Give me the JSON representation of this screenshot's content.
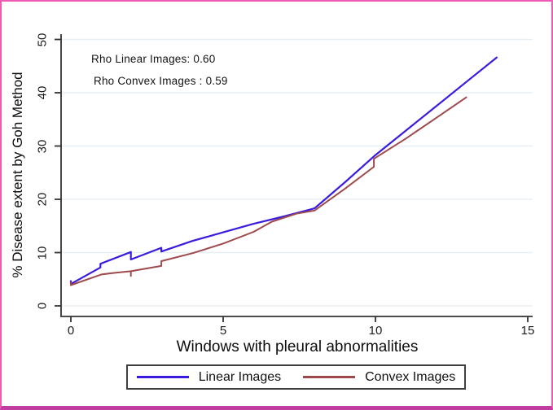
{
  "frame": {
    "border_color": "#f05ab2",
    "bottom_bar_color": "#c13da0",
    "background": "#ffffff"
  },
  "chart_data": {
    "type": "line",
    "title": "",
    "xlabel": "Windows with pleural abnormalities",
    "ylabel": "% Disease extent by Goh Method",
    "xlim": [
      0,
      15
    ],
    "ylim": [
      0,
      50
    ],
    "xticks": [
      0,
      5,
      10,
      15
    ],
    "yticks": [
      0,
      10,
      20,
      30,
      40,
      50
    ],
    "grid": "horizontal",
    "grid_color": "#e7eff4",
    "axis_color": "#333333",
    "legend_position": "bottom",
    "annotations": [
      {
        "text": "Rho Linear Images: 0.60"
      },
      {
        "text": "Rho Convex Images : 0.59"
      }
    ],
    "series": [
      {
        "name": "Linear Images",
        "color": "#3a1ce0",
        "stroke_width": 2.2,
        "points": [
          [
            0,
            4.8
          ],
          [
            0,
            4.1
          ],
          [
            0.97,
            7.2
          ],
          [
            0.97,
            7.9
          ],
          [
            1.97,
            10.1
          ],
          [
            1.97,
            8.7
          ],
          [
            2.97,
            10.9
          ],
          [
            2.97,
            10.2
          ],
          [
            4,
            12.2
          ],
          [
            5,
            13.8
          ],
          [
            6,
            15.4
          ],
          [
            7,
            16.8
          ],
          [
            8,
            18.3
          ],
          [
            9,
            23.2
          ],
          [
            10,
            28.3
          ],
          [
            11,
            32.9
          ],
          [
            12,
            37.5
          ],
          [
            13,
            42.1
          ],
          [
            14,
            46.7
          ]
        ]
      },
      {
        "name": "Convex Images",
        "color": "#9e4a4c",
        "stroke_width": 2,
        "points": [
          [
            0,
            4.5
          ],
          [
            0,
            3.9
          ],
          [
            1,
            5.9
          ],
          [
            1.35,
            6.15
          ],
          [
            1.97,
            6.5
          ],
          [
            1.97,
            5.6
          ],
          [
            1.97,
            6.5
          ],
          [
            2.97,
            7.5
          ],
          [
            2.97,
            8.4
          ],
          [
            4,
            9.9
          ],
          [
            5,
            11.7
          ],
          [
            6,
            13.9
          ],
          [
            6.6,
            15.8
          ],
          [
            7.4,
            17.3
          ],
          [
            8,
            17.9
          ],
          [
            9,
            22.0
          ],
          [
            9.95,
            26.1
          ],
          [
            9.95,
            27.6
          ],
          [
            11,
            31.4
          ],
          [
            12,
            35.3
          ],
          [
            13,
            39.2
          ]
        ]
      }
    ]
  }
}
